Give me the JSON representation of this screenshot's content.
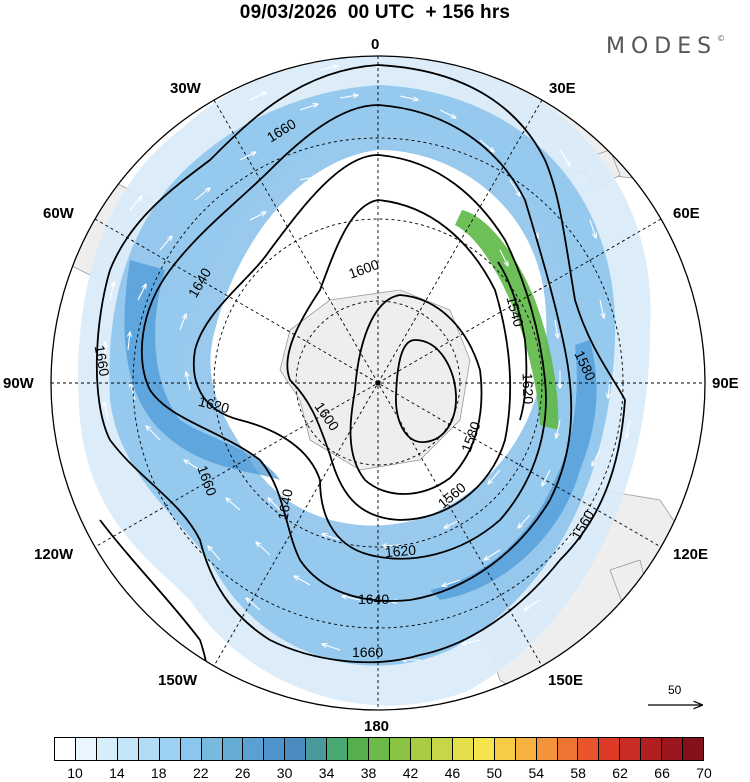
{
  "title": "09/03/2026  00 UTC  + 156 hrs",
  "brand": "MODES",
  "brand_mark": "©",
  "longitude_labels": {
    "lon_0": "0",
    "lon_30e": "30E",
    "lon_60e": "60E",
    "lon_90e": "90E",
    "lon_120e": "120E",
    "lon_150e": "150E",
    "lon_180": "180",
    "lon_150w": "150W",
    "lon_120w": "120W",
    "lon_90w": "90W",
    "lon_60w": "60W",
    "lon_30w": "30W"
  },
  "contour_labels": [
    "1660",
    "1640",
    "1620",
    "1600",
    "1580",
    "1560",
    "1540",
    "1660",
    "1620",
    "1600",
    "1640",
    "1660",
    "1580",
    "1620",
    "1640",
    "1660",
    "1560"
  ],
  "wind_reference": {
    "value": "50"
  },
  "colorbar": {
    "ticks": [
      "10",
      "14",
      "18",
      "22",
      "26",
      "30",
      "34",
      "38",
      "42",
      "46",
      "50",
      "54",
      "58",
      "62",
      "66",
      "70"
    ],
    "colors": [
      "#ffffff",
      "#eaf6fd",
      "#d6eefa",
      "#c3e5f8",
      "#b0dcf5",
      "#9dd1f2",
      "#8bc6ef",
      "#78badb",
      "#66add6",
      "#5aa0d2",
      "#4f92cc",
      "#4a8bc2",
      "#4a9a9c",
      "#4aa873",
      "#55b04c",
      "#6cba47",
      "#8bc443",
      "#a9cc45",
      "#c6d647",
      "#e3e04b",
      "#f5e44e",
      "#f7cc45",
      "#f6b13f",
      "#f3933a",
      "#ee7433",
      "#e8552d",
      "#dd3b28",
      "#c92b25",
      "#b31f21",
      "#9b161d",
      "#85121a"
    ]
  },
  "colors": {
    "land": "#eeeeee",
    "shade_light": "#d9ecf9",
    "shade_mid": "#8ec4ec",
    "shade_strong": "#4c9ad8",
    "jet_green": "#5db845"
  }
}
